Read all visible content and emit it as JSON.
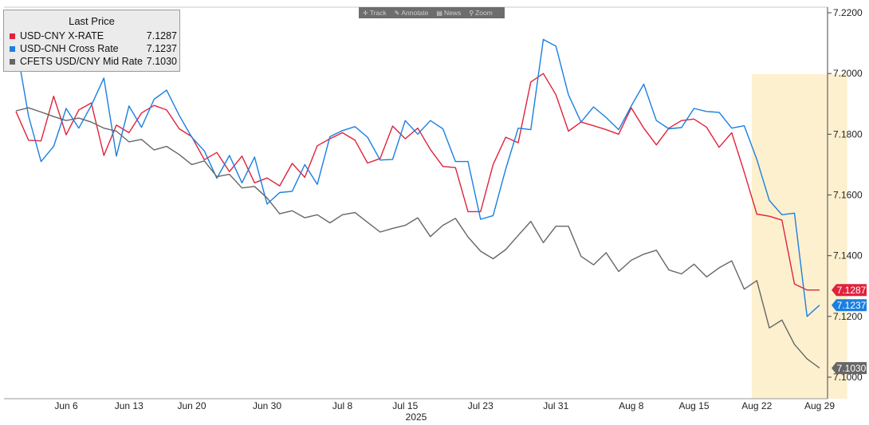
{
  "toolbar": {
    "items": [
      {
        "label": "Track",
        "icon": "crosshair-icon",
        "glyph": "✛"
      },
      {
        "label": "Annotate",
        "icon": "pencil-icon",
        "glyph": "✎"
      },
      {
        "label": "News",
        "icon": "news-icon",
        "glyph": "▤"
      },
      {
        "label": "Zoom",
        "icon": "magnifier-icon",
        "glyph": "⚲"
      }
    ]
  },
  "legend": {
    "title": "Last Price",
    "entries": [
      {
        "name": "USD-CNY X-RATE",
        "value": "7.1287",
        "color": "#e0223c"
      },
      {
        "name": "USD-CNH Cross Rate",
        "value": "7.1237",
        "color": "#1a7fe0"
      },
      {
        "name": "CFETS USD/CNY Mid Rate",
        "value": "7.1030",
        "color": "#666666"
      }
    ]
  },
  "chart_data": {
    "type": "line",
    "title": "",
    "xlabel": "2025",
    "ylabel": "",
    "ylim": [
      7.092,
      7.222
    ],
    "grid": false,
    "legend_position": "top-left",
    "y_ticks": [
      "7.2200",
      "7.2000",
      "7.1800",
      "7.1600",
      "7.1400",
      "7.1200",
      "7.1000"
    ],
    "x_ticks": [
      {
        "label": "Jun 6",
        "index": 4
      },
      {
        "label": "Jun 13",
        "index": 9
      },
      {
        "label": "Jun 20",
        "index": 14
      },
      {
        "label": "Jun 30",
        "index": 20
      },
      {
        "label": "Jul 8",
        "index": 26
      },
      {
        "label": "Jul 15",
        "index": 31
      },
      {
        "label": "Jul 23",
        "index": 37
      },
      {
        "label": "Jul 31",
        "index": 43
      },
      {
        "label": "Aug 8",
        "index": 49
      },
      {
        "label": "Aug 15",
        "index": 54
      },
      {
        "label": "Aug 22",
        "index": 59
      },
      {
        "label": "Aug 29",
        "index": 64
      }
    ],
    "highlight": {
      "start_index": 58.6,
      "end_index": 66.2,
      "color": "#fdf0cf"
    },
    "x_count": 67,
    "series": [
      {
        "name": "USD-CNY X-RATE",
        "color": "#e0223c",
        "last_label": "7.1287",
        "values": [
          7.1875,
          7.178,
          7.1778,
          7.1925,
          7.1798,
          7.188,
          7.1903,
          7.173,
          7.183,
          7.1805,
          7.187,
          7.1895,
          7.188,
          7.1818,
          7.1792,
          7.1716,
          7.174,
          7.1677,
          7.1728,
          7.164,
          7.1656,
          7.163,
          7.1704,
          7.1658,
          7.1762,
          7.1785,
          7.1805,
          7.178,
          7.1705,
          7.172,
          7.1827,
          7.1785,
          7.182,
          7.175,
          7.1694,
          7.169,
          7.1545,
          7.1545,
          7.17,
          7.179,
          7.1772,
          7.1972,
          7.2,
          7.193,
          7.181,
          7.184,
          7.1828,
          7.1815,
          7.18,
          7.1887,
          7.182,
          7.1765,
          7.182,
          7.1845,
          7.185,
          7.1823,
          7.1757,
          7.1805,
          7.1675,
          7.1537,
          7.153,
          7.1517,
          7.1307,
          7.1287,
          7.1287
        ]
      },
      {
        "name": "USD-CNH Cross Rate",
        "color": "#1a7fe0",
        "last_label": "7.1237",
        "values": [
          7.21,
          7.186,
          7.171,
          7.176,
          7.1885,
          7.182,
          7.1895,
          7.1985,
          7.1728,
          7.1893,
          7.1823,
          7.1915,
          7.1945,
          7.1862,
          7.179,
          7.1745,
          7.1655,
          7.173,
          7.164,
          7.1725,
          7.157,
          7.1608,
          7.1612,
          7.17,
          7.1635,
          7.1792,
          7.1812,
          7.1825,
          7.179,
          7.1715,
          7.1717,
          7.1845,
          7.18,
          7.1845,
          7.1818,
          7.171,
          7.171,
          7.152,
          7.1532,
          7.1685,
          7.182,
          7.1815,
          7.2112,
          7.209,
          7.193,
          7.184,
          7.189,
          7.1855,
          7.1815,
          7.1893,
          7.1965,
          7.1845,
          7.1818,
          7.1822,
          7.1885,
          7.1875,
          7.1872,
          7.182,
          7.1828,
          7.1717,
          7.1582,
          7.1535,
          7.154,
          7.12,
          7.1237
        ]
      },
      {
        "name": "CFETS USD/CNY Mid Rate",
        "color": "#666666",
        "last_label": "7.1030",
        "values": [
          7.1877,
          7.1887,
          7.1873,
          7.1858,
          7.1845,
          7.1853,
          7.184,
          7.182,
          7.181,
          7.1775,
          7.1783,
          7.1748,
          7.176,
          7.1733,
          7.17,
          7.1712,
          7.166,
          7.1668,
          7.1623,
          7.1628,
          7.159,
          7.1538,
          7.1548,
          7.1525,
          7.1535,
          7.1508,
          7.1535,
          7.1542,
          7.151,
          7.1478,
          7.149,
          7.15,
          7.1525,
          7.1463,
          7.15,
          7.1523,
          7.1462,
          7.1415,
          7.139,
          7.142,
          7.1467,
          7.1513,
          7.1443,
          7.1497,
          7.1497,
          7.1398,
          7.137,
          7.141,
          7.1348,
          7.1385,
          7.1405,
          7.1418,
          7.1353,
          7.134,
          7.1372,
          7.133,
          7.136,
          7.1383,
          7.129,
          7.1318,
          7.1162,
          7.1188,
          7.1108,
          7.106,
          7.103
        ]
      }
    ]
  }
}
